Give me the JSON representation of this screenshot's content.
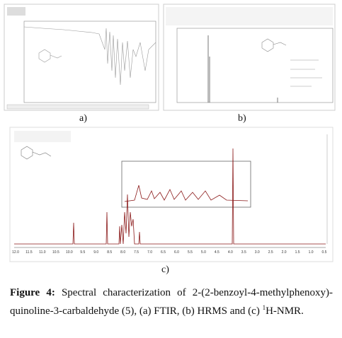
{
  "panels": {
    "a": {
      "label": "a)"
    },
    "b": {
      "label": "b)"
    },
    "c": {
      "label": "c)",
      "axis_ticks": [
        "12.0",
        "11.5",
        "11.0",
        "10.5",
        "10.0",
        "9.5",
        "9.0",
        "8.5",
        "8.0",
        "7.5",
        "7.0",
        "6.5",
        "6.0",
        "5.5",
        "5.0",
        "4.5",
        "4.0",
        "3.5",
        "3.0",
        "2.5",
        "2.0",
        "1.5",
        "1.0",
        "0.5"
      ]
    }
  },
  "caption": {
    "label": "Figure 4:",
    "text": "Spectral characterization of 2-(2-benzoyl-4-methylphenoxy)-quinoline-3-carbaldehyde (5), (a) FTIR, (b) HRMS and (c)",
    "superscript": "1",
    "text_end": "H-NMR."
  }
}
